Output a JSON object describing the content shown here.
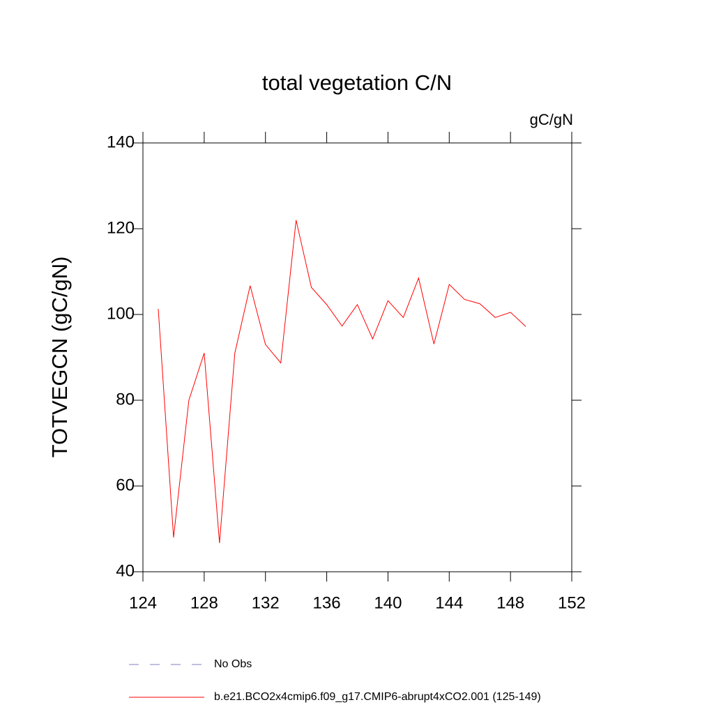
{
  "chart_data": {
    "type": "line",
    "title": "total vegetation C/N",
    "units": "gC/gN",
    "y_label": "TOTVEGCN  (gC/gN)",
    "x": [
      125,
      126,
      127,
      128,
      129,
      130,
      131,
      132,
      133,
      134,
      135,
      136,
      137,
      138,
      139,
      140,
      141,
      142,
      143,
      144,
      145,
      146,
      147,
      148,
      149
    ],
    "series": [
      {
        "name": "No Obs",
        "color": "#7f7fbf",
        "dash": "dashed",
        "values": [
          null,
          null,
          null,
          null,
          null,
          null,
          null,
          null,
          null,
          null,
          null,
          null,
          null,
          null,
          null,
          null,
          null,
          null,
          null,
          null,
          null,
          null,
          null,
          null,
          null
        ]
      },
      {
        "name": "b.e21.BCO2x4cmip6.f09_g17.CMIP6-abrupt4xCO2.001 (125-149)",
        "color": "#ff0000",
        "dash": "solid",
        "values": [
          101.3,
          48,
          80,
          91,
          46.7,
          91,
          106.7,
          93,
          88.7,
          122,
          106.3,
          102.3,
          97.3,
          102.3,
          94.3,
          103.2,
          99.3,
          108.5,
          93.1,
          107,
          103.5,
          102.5,
          99.3,
          100.5,
          97.2
        ]
      }
    ],
    "xlim": [
      124,
      152
    ],
    "xticks": [
      124,
      128,
      132,
      136,
      140,
      144,
      148,
      152
    ],
    "ylim": [
      40,
      140
    ],
    "yticks": [
      40,
      60,
      80,
      100,
      120,
      140
    ],
    "grid": false
  }
}
